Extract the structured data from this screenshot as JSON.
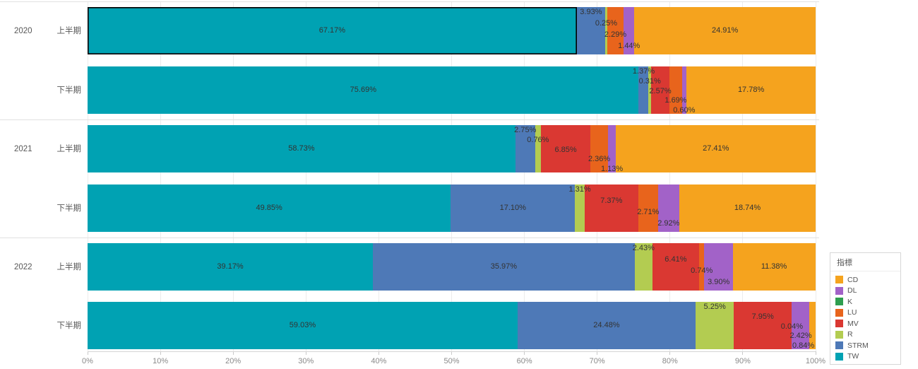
{
  "chart_data": {
    "type": "bar",
    "orientation": "horizontal",
    "stacked": true,
    "unit": "%",
    "xlim": [
      0,
      100
    ],
    "grid": true,
    "x_ticks": [
      "0%",
      "10%",
      "20%",
      "30%",
      "40%",
      "50%",
      "60%",
      "70%",
      "80%",
      "90%",
      "100%"
    ],
    "legend_title": "指標",
    "legend_position": "right",
    "series": [
      {
        "name": "CD",
        "color": "#F5A31E"
      },
      {
        "name": "DL",
        "color": "#A262C8"
      },
      {
        "name": "K",
        "color": "#2E9E4F"
      },
      {
        "name": "LU",
        "color": "#E8641C"
      },
      {
        "name": "MV",
        "color": "#DA3832"
      },
      {
        "name": "R",
        "color": "#B3CC51"
      },
      {
        "name": "STRM",
        "color": "#4E79B7"
      },
      {
        "name": "TW",
        "color": "#00A2B3"
      }
    ],
    "stack_order": [
      "TW",
      "STRM",
      "R",
      "MV",
      "LU",
      "K",
      "DL",
      "CD"
    ],
    "rows": [
      {
        "year": "2020",
        "period": "上半期",
        "selected_segment": "TW",
        "values": {
          "TW": 67.17,
          "STRM": 3.93,
          "R": 0.25,
          "LU": 2.29,
          "DL": 1.44,
          "CD": 24.91
        }
      },
      {
        "year": "2020",
        "period": "下半期",
        "values": {
          "TW": 75.69,
          "STRM": 1.37,
          "R": 0.31,
          "MV": 2.57,
          "LU": 1.69,
          "DL": 0.6,
          "CD": 17.78
        }
      },
      {
        "year": "2021",
        "period": "上半期",
        "values": {
          "TW": 58.73,
          "STRM": 2.75,
          "R": 0.76,
          "MV": 6.85,
          "LU": 2.36,
          "DL": 1.13,
          "CD": 27.41
        }
      },
      {
        "year": "2021",
        "period": "下半期",
        "values": {
          "TW": 49.85,
          "STRM": 17.1,
          "R": 1.31,
          "MV": 7.37,
          "LU": 2.71,
          "DL": 2.92,
          "CD": 18.74
        }
      },
      {
        "year": "2022",
        "period": "上半期",
        "values": {
          "TW": 39.17,
          "STRM": 35.97,
          "R": 2.43,
          "MV": 6.41,
          "LU": 0.74,
          "DL": 3.9,
          "CD": 11.38
        }
      },
      {
        "year": "2022",
        "period": "下半期",
        "values": {
          "TW": 59.03,
          "STRM": 24.48,
          "R": 5.25,
          "MV": 7.95,
          "LU": 0.04,
          "DL": 2.42,
          "CD": 0.84
        }
      }
    ]
  }
}
